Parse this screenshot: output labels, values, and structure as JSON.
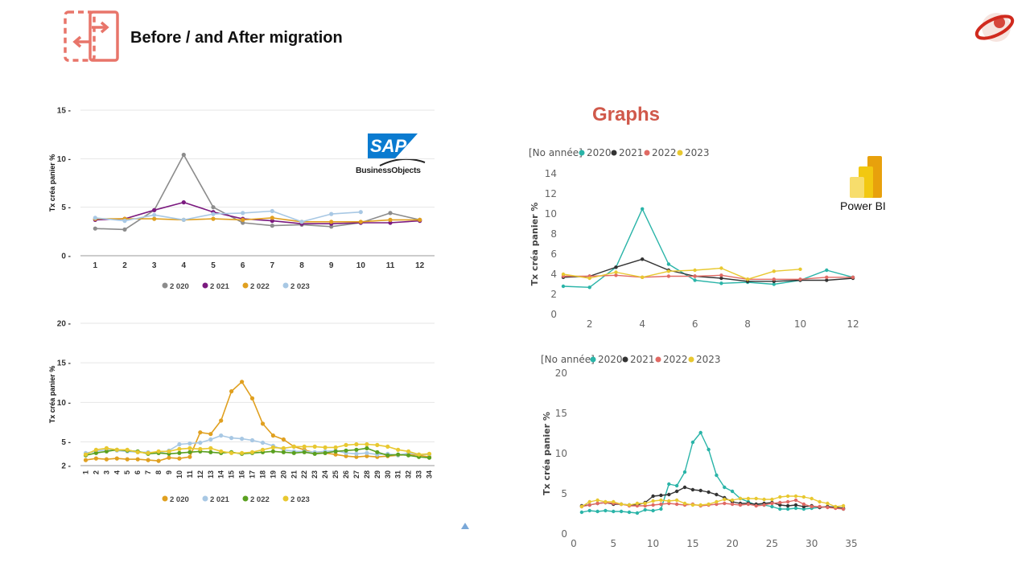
{
  "slide": {
    "title": "Before / and After migration",
    "graphs_label": "Graphs",
    "accent_color": "#e8756a",
    "graphs_color": "#d0594b"
  },
  "logos": {
    "sap_text": "SAP",
    "business_objects_text": "BusinessObjects",
    "powerbi_text": "Power BI",
    "sap_color": "#0a7bd0",
    "powerbi_color": "#f2c811"
  },
  "chart_data": [
    {
      "id": "bo-monthly",
      "type": "line",
      "tool": "SAP BusinessObjects",
      "ylabel": "Tx créa panier %",
      "ylim": [
        0,
        15
      ],
      "yticks": [
        0,
        5,
        10,
        15
      ],
      "xticks": [
        1,
        2,
        3,
        4,
        5,
        6,
        7,
        8,
        9,
        10,
        11,
        12
      ],
      "legend_position": "bottom",
      "series": [
        {
          "name": "2 020",
          "color": "#8c8c8c",
          "x": [
            1,
            2,
            3,
            4,
            5,
            6,
            7,
            8,
            9,
            10,
            11,
            12
          ],
          "values": [
            2.8,
            2.7,
            4.7,
            10.4,
            5.0,
            3.4,
            3.1,
            3.2,
            3.0,
            3.4,
            4.4,
            3.7
          ]
        },
        {
          "name": "2 021",
          "color": "#7b1a7f",
          "x": [
            1,
            2,
            3,
            4,
            5,
            6,
            7,
            8,
            9,
            10,
            11,
            12
          ],
          "values": [
            3.7,
            3.8,
            4.7,
            5.5,
            4.5,
            3.8,
            3.6,
            3.3,
            3.3,
            3.4,
            3.4,
            3.6
          ]
        },
        {
          "name": "2 022",
          "color": "#e0a020",
          "x": [
            1,
            2,
            3,
            4,
            5,
            6,
            7,
            8,
            9,
            10,
            11,
            12
          ],
          "values": [
            3.8,
            3.8,
            3.8,
            3.7,
            3.8,
            3.7,
            3.9,
            3.5,
            3.5,
            3.5,
            3.7,
            3.7
          ]
        },
        {
          "name": "2 023",
          "color": "#a8c8e4",
          "x": [
            1,
            2,
            3,
            4,
            5,
            6,
            7,
            8,
            9,
            10
          ],
          "values": [
            3.9,
            3.6,
            4.2,
            3.7,
            4.3,
            4.4,
            4.6,
            3.5,
            4.3,
            4.5
          ]
        }
      ]
    },
    {
      "id": "bo-weekly",
      "type": "line",
      "tool": "SAP BusinessObjects",
      "ylabel": "Tx créa panier %",
      "ylim": [
        2,
        20
      ],
      "yticks": [
        2,
        5,
        10,
        15,
        20
      ],
      "xticks": [
        1,
        2,
        3,
        4,
        5,
        6,
        7,
        8,
        9,
        10,
        11,
        12,
        13,
        14,
        15,
        16,
        17,
        18,
        19,
        20,
        21,
        22,
        23,
        24,
        25,
        26,
        27,
        28,
        29,
        30,
        31,
        32,
        33,
        34
      ],
      "legend_position": "bottom",
      "series": [
        {
          "name": "2 020",
          "color": "#e0a020",
          "x": [
            1,
            2,
            3,
            4,
            5,
            6,
            7,
            8,
            9,
            10,
            11,
            12,
            13,
            14,
            15,
            16,
            17,
            18,
            19,
            20,
            21,
            22,
            23,
            24,
            25,
            26,
            27,
            28,
            29,
            30,
            31,
            32,
            33,
            34
          ],
          "values": [
            2.7,
            2.9,
            2.8,
            2.9,
            2.8,
            2.8,
            2.7,
            2.6,
            3.0,
            2.9,
            3.1,
            6.2,
            6.0,
            7.7,
            11.4,
            12.6,
            10.5,
            7.3,
            5.8,
            5.3,
            4.4,
            4.0,
            3.6,
            3.6,
            3.4,
            3.2,
            3.1,
            3.2,
            3.1,
            3.2,
            3.3,
            3.4,
            3.3,
            3.1
          ]
        },
        {
          "name": "2 021",
          "color": "#a8c8e4",
          "x": [
            1,
            2,
            3,
            4,
            5,
            6,
            7,
            8,
            9,
            10,
            11,
            12,
            13,
            14,
            15,
            16,
            17,
            18,
            19,
            20,
            21,
            22,
            23,
            24,
            25,
            26,
            27,
            28,
            29,
            30,
            31,
            32,
            33,
            34
          ],
          "values": [
            3.6,
            3.8,
            4.0,
            3.9,
            3.8,
            3.7,
            3.7,
            3.6,
            3.9,
            4.7,
            4.8,
            4.9,
            5.3,
            5.8,
            5.5,
            5.4,
            5.2,
            4.9,
            4.5,
            4.0,
            3.8,
            3.8,
            3.7,
            3.8,
            3.9,
            3.6,
            3.5,
            3.6,
            3.4,
            3.5,
            3.3,
            3.6,
            3.4,
            3.4
          ]
        },
        {
          "name": "2 022",
          "color": "#5aa020",
          "x": [
            1,
            2,
            3,
            4,
            5,
            6,
            7,
            8,
            9,
            10,
            11,
            12,
            13,
            14,
            15,
            16,
            17,
            18,
            19,
            20,
            21,
            22,
            23,
            24,
            25,
            26,
            27,
            28,
            29,
            30,
            31,
            32,
            33,
            34
          ],
          "values": [
            3.3,
            3.6,
            3.8,
            4.0,
            3.9,
            3.8,
            3.5,
            3.6,
            3.5,
            3.6,
            3.7,
            3.8,
            3.7,
            3.6,
            3.7,
            3.5,
            3.6,
            3.7,
            3.8,
            3.7,
            3.6,
            3.7,
            3.5,
            3.6,
            3.8,
            3.9,
            4.0,
            4.2,
            3.7,
            3.3,
            3.4,
            3.3,
            3.1,
            3.0
          ]
        },
        {
          "name": "2 023",
          "color": "#e8c830",
          "x": [
            1,
            2,
            3,
            4,
            5,
            6,
            7,
            8,
            9,
            10,
            11,
            12,
            13,
            14,
            15,
            16,
            17,
            18,
            19,
            20,
            21,
            22,
            23,
            24,
            25,
            26,
            27,
            28,
            29,
            30,
            31,
            32,
            33,
            34
          ],
          "values": [
            3.4,
            4.0,
            4.2,
            4.0,
            4.0,
            3.7,
            3.6,
            3.8,
            3.8,
            4.1,
            4.2,
            4.1,
            4.2,
            3.8,
            3.6,
            3.6,
            3.7,
            4.0,
            4.3,
            4.2,
            4.4,
            4.4,
            4.4,
            4.3,
            4.3,
            4.6,
            4.7,
            4.7,
            4.6,
            4.4,
            4.0,
            3.8,
            3.4,
            3.5
          ]
        }
      ]
    },
    {
      "id": "pbi-monthly",
      "type": "line",
      "tool": "Power BI",
      "legend_title": "[No année]",
      "ylabel": "Tx créa panier %",
      "ylim": [
        0,
        14
      ],
      "yticks": [
        0,
        2,
        4,
        6,
        8,
        10,
        12,
        14
      ],
      "xlim": [
        1,
        12
      ],
      "xticks": [
        2,
        4,
        6,
        8,
        10,
        12
      ],
      "legend_position": "top-left",
      "series": [
        {
          "name": "2020",
          "color": "#2ab4a8",
          "x": [
            1,
            2,
            3,
            4,
            5,
            6,
            7,
            8,
            9,
            10,
            11,
            12
          ],
          "values": [
            2.8,
            2.7,
            4.7,
            10.5,
            5.0,
            3.4,
            3.1,
            3.2,
            3.0,
            3.4,
            4.4,
            3.7
          ]
        },
        {
          "name": "2021",
          "color": "#333333",
          "x": [
            1,
            2,
            3,
            4,
            5,
            6,
            7,
            8,
            9,
            10,
            11,
            12
          ],
          "values": [
            3.7,
            3.8,
            4.7,
            5.5,
            4.4,
            3.8,
            3.6,
            3.3,
            3.3,
            3.4,
            3.4,
            3.6
          ]
        },
        {
          "name": "2022",
          "color": "#e06a64",
          "x": [
            1,
            2,
            3,
            4,
            5,
            6,
            7,
            8,
            9,
            10,
            11,
            12
          ],
          "values": [
            3.8,
            3.8,
            3.9,
            3.7,
            3.8,
            3.8,
            3.9,
            3.5,
            3.5,
            3.5,
            3.7,
            3.7
          ]
        },
        {
          "name": "2023",
          "color": "#e8c830",
          "x": [
            1,
            2,
            3,
            4,
            5,
            6,
            7,
            8,
            9,
            10
          ],
          "values": [
            4.0,
            3.6,
            4.2,
            3.7,
            4.3,
            4.4,
            4.6,
            3.5,
            4.3,
            4.5
          ]
        }
      ]
    },
    {
      "id": "pbi-weekly",
      "type": "line",
      "tool": "Power BI",
      "legend_title": "[No année]",
      "ylabel": "Tx créa panier %",
      "ylim": [
        0,
        20
      ],
      "yticks": [
        0,
        5,
        10,
        15,
        20
      ],
      "xlim": [
        0,
        35
      ],
      "xticks": [
        0,
        5,
        10,
        15,
        20,
        25,
        30,
        35
      ],
      "legend_position": "top-left",
      "series": [
        {
          "name": "2020",
          "color": "#2ab4a8",
          "x": [
            1,
            2,
            3,
            4,
            5,
            6,
            7,
            8,
            9,
            10,
            11,
            12,
            13,
            14,
            15,
            16,
            17,
            18,
            19,
            20,
            21,
            22,
            23,
            24,
            25,
            26,
            27,
            28,
            29,
            30,
            31,
            32,
            33,
            34
          ],
          "values": [
            2.7,
            2.9,
            2.8,
            2.9,
            2.8,
            2.8,
            2.7,
            2.6,
            3.0,
            2.9,
            3.1,
            6.2,
            6.0,
            7.7,
            11.4,
            12.6,
            10.5,
            7.3,
            5.8,
            5.3,
            4.4,
            4.0,
            3.6,
            3.6,
            3.4,
            3.1,
            3.1,
            3.2,
            3.1,
            3.2,
            3.3,
            3.4,
            3.3,
            3.1
          ]
        },
        {
          "name": "2021",
          "color": "#333333",
          "x": [
            1,
            2,
            3,
            4,
            5,
            6,
            7,
            8,
            9,
            10,
            11,
            12,
            13,
            14,
            15,
            16,
            17,
            18,
            19,
            20,
            21,
            22,
            23,
            24,
            25,
            26,
            27,
            28,
            29,
            30,
            31,
            32,
            33,
            34
          ],
          "values": [
            3.5,
            3.6,
            3.8,
            3.9,
            3.7,
            3.7,
            3.6,
            3.6,
            3.9,
            4.7,
            4.8,
            4.9,
            5.3,
            5.8,
            5.5,
            5.4,
            5.2,
            4.9,
            4.5,
            4.0,
            3.8,
            3.8,
            3.7,
            3.8,
            3.9,
            3.6,
            3.5,
            3.6,
            3.4,
            3.5,
            3.3,
            3.4,
            3.3,
            3.2
          ]
        },
        {
          "name": "2022",
          "color": "#e06a64",
          "x": [
            1,
            2,
            3,
            4,
            5,
            6,
            7,
            8,
            9,
            10,
            11,
            12,
            13,
            14,
            15,
            16,
            17,
            18,
            19,
            20,
            21,
            22,
            23,
            24,
            25,
            26,
            27,
            28,
            29,
            30,
            31,
            32,
            33,
            34
          ],
          "values": [
            3.4,
            3.6,
            3.8,
            3.9,
            3.8,
            3.7,
            3.5,
            3.5,
            3.5,
            3.6,
            3.7,
            3.8,
            3.7,
            3.6,
            3.7,
            3.5,
            3.6,
            3.7,
            3.8,
            3.7,
            3.6,
            3.7,
            3.5,
            3.6,
            3.8,
            3.9,
            4.0,
            4.2,
            3.7,
            3.4,
            3.4,
            3.3,
            3.2,
            3.1
          ]
        },
        {
          "name": "2023",
          "color": "#e8c830",
          "x": [
            1,
            2,
            3,
            4,
            5,
            6,
            7,
            8,
            9,
            10,
            11,
            12,
            13,
            14,
            15,
            16,
            17,
            18,
            19,
            20,
            21,
            22,
            23,
            24,
            25,
            26,
            27,
            28,
            29,
            30,
            31,
            32,
            33,
            34
          ],
          "values": [
            3.4,
            4.0,
            4.2,
            4.0,
            4.0,
            3.7,
            3.6,
            3.8,
            3.8,
            4.1,
            4.2,
            4.1,
            4.2,
            3.8,
            3.6,
            3.6,
            3.7,
            4.0,
            4.3,
            4.2,
            4.4,
            4.4,
            4.4,
            4.3,
            4.3,
            4.6,
            4.7,
            4.7,
            4.6,
            4.4,
            4.0,
            3.8,
            3.4,
            3.5
          ]
        }
      ]
    }
  ]
}
